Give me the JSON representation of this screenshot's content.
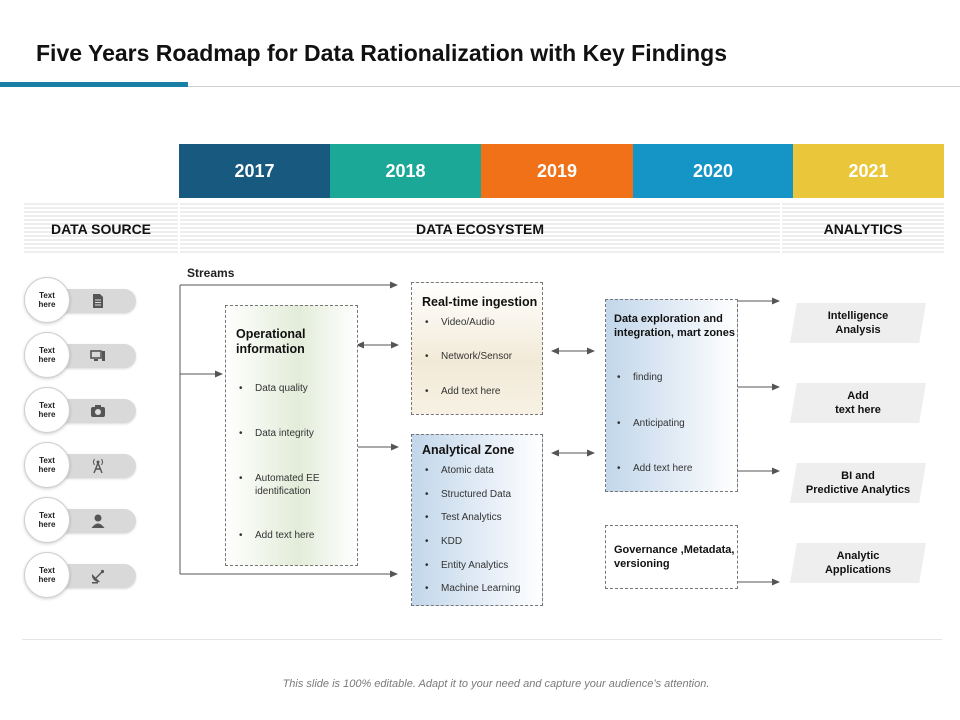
{
  "title": "Five Years Roadmap for Data Rationalization with Key Findings",
  "colors": {
    "accent": "#1a7fa6",
    "y2017": "#17597f",
    "y2018": "#1ba896",
    "y2019": "#f07118",
    "y2020": "#1495c6",
    "y2021": "#e9c63a"
  },
  "years": [
    "2017",
    "2018",
    "2019",
    "2020",
    "2021"
  ],
  "bands": {
    "source": "DATA SOURCE",
    "ecosystem": "DATA ECOSYSTEM",
    "analytics": "ANALYTICS"
  },
  "sources": [
    {
      "label": "Text here",
      "icon": "document-icon"
    },
    {
      "label": "Text here",
      "icon": "computer-icon"
    },
    {
      "label": "Text here",
      "icon": "camera-icon"
    },
    {
      "label": "Text here",
      "icon": "antenna-icon"
    },
    {
      "label": "Text here",
      "icon": "user-icon"
    },
    {
      "label": "Text here",
      "icon": "satellite-dish-icon"
    }
  ],
  "streams_label": "Streams",
  "operational": {
    "title": "Operational information",
    "items": [
      "Data quality",
      "Data integrity",
      "Automated EE identification",
      "Add text here"
    ]
  },
  "realtime": {
    "title": "Real-time ingestion",
    "items": [
      "Video/Audio",
      "Network/Sensor",
      "Add text here"
    ]
  },
  "analytical": {
    "title": "Analytical Zone",
    "items": [
      "Atomic data",
      "Structured Data",
      "Test Analytics",
      "KDD",
      "Entity Analytics",
      "Machine Learning"
    ]
  },
  "exploration": {
    "title": "Data exploration and integration, mart zones",
    "items": [
      "finding",
      "Anticipating",
      "Add text here"
    ]
  },
  "governance": {
    "title": "Governance ,Metadata, versioning"
  },
  "outputs": [
    "Intelligence Analysis",
    "Add text here",
    "BI and Predictive Analytics",
    "Analytic Applications"
  ],
  "footer": "This slide is 100% editable. Adapt it to your need and capture your audience’s attention."
}
